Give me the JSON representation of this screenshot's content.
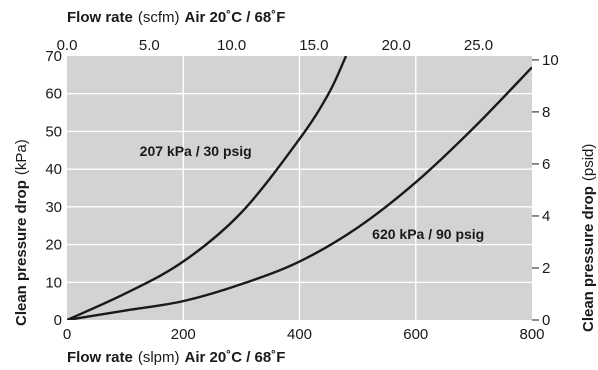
{
  "chart_data": {
    "type": "line",
    "x_bottom": {
      "label_prefix": "Flow rate",
      "unit": "(slpm)",
      "label_suffix": "Air 20˚C / 68˚F",
      "range": [
        0,
        800
      ],
      "ticks": [
        "0",
        "200",
        "400",
        "600",
        "800"
      ]
    },
    "x_top": {
      "label_prefix": "Flow rate",
      "unit": "(scfm)",
      "label_suffix": "Air 20˚C / 68˚F",
      "range": [
        0,
        28.25
      ],
      "ticks": [
        "0.0",
        "5.0",
        "10.0",
        "15.0",
        "20.0",
        "25.0"
      ]
    },
    "y_left": {
      "label_prefix": "Clean pressure drop",
      "unit": "(kPa)",
      "range": [
        0,
        70
      ],
      "ticks": [
        "0",
        "10",
        "20",
        "30",
        "40",
        "50",
        "60",
        "70"
      ]
    },
    "y_right": {
      "label_prefix": "Clean pressure drop",
      "unit": "(psid)",
      "range": [
        0,
        10.15
      ],
      "ticks": [
        "0",
        "2",
        "4",
        "6",
        "8",
        "10"
      ]
    },
    "grid": true,
    "series": [
      {
        "name": "207 kPa / 30 psig",
        "x": [
          0,
          100,
          200,
          300,
          400,
          450,
          480
        ],
        "y": [
          0,
          7,
          15.5,
          28.5,
          48,
          60,
          70
        ]
      },
      {
        "name": "620 kPa / 90 psig",
        "x": [
          0,
          100,
          200,
          300,
          400,
          500,
          600,
          700,
          800
        ],
        "y": [
          0,
          2.5,
          5,
          9.5,
          15.5,
          24.5,
          36.5,
          51,
          67
        ]
      }
    ]
  }
}
